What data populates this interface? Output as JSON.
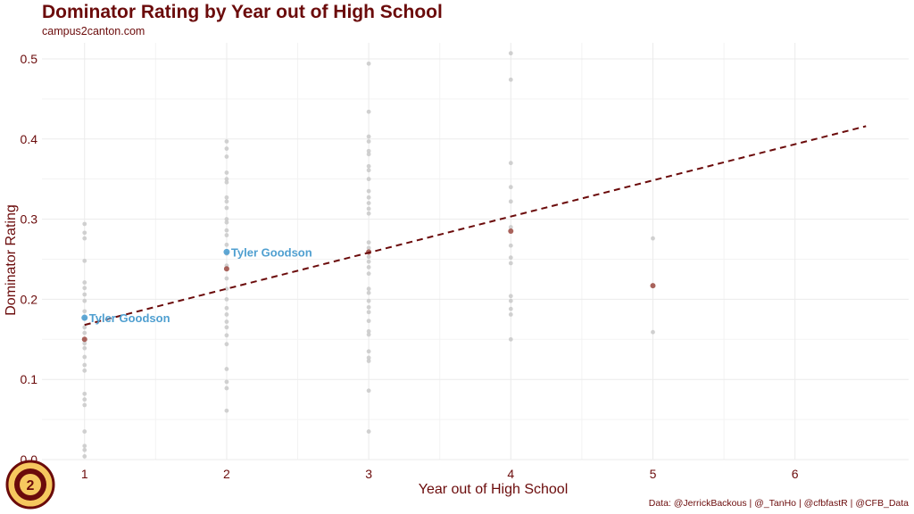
{
  "header": {
    "title": "Dominator Rating by Year out of High School",
    "subtitle": "campus2canton.com"
  },
  "caption": "Data: @JerrickBackous | @_TanHo | @cfbfastR | @CFB_Data",
  "logo": {
    "name": "campus2canton-logo"
  },
  "colors": {
    "text": "#6b0b0b",
    "trend": "#6b0b0b",
    "background_points": "#c9c9c9",
    "highlight_points": "#a0524a",
    "player": "#4f9fd0",
    "grid": "#ebebeb"
  },
  "chart_data": {
    "type": "scatter",
    "xlabel": "Year out of High School",
    "ylabel": "Dominator Rating",
    "xlim": [
      0.7,
      6.8
    ],
    "ylim": [
      0,
      0.52
    ],
    "x_ticks": [
      1,
      2,
      3,
      4,
      5,
      6
    ],
    "y_ticks": [
      0.0,
      0.1,
      0.2,
      0.3,
      0.4,
      0.5
    ],
    "y_tick_labels": [
      "0.0",
      "0.1",
      "0.2",
      "0.3",
      "0.4",
      "0.5"
    ],
    "grid": true,
    "series": [
      {
        "role": "background",
        "points": [
          [
            1,
            0.294
          ],
          [
            1,
            0.283
          ],
          [
            1,
            0.276
          ],
          [
            1,
            0.248
          ],
          [
            1,
            0.221
          ],
          [
            1,
            0.214
          ],
          [
            1,
            0.206
          ],
          [
            1,
            0.198
          ],
          [
            1,
            0.185
          ],
          [
            1,
            0.176
          ],
          [
            1,
            0.165
          ],
          [
            1,
            0.158
          ],
          [
            1,
            0.145
          ],
          [
            1,
            0.139
          ],
          [
            1,
            0.128
          ],
          [
            1,
            0.118
          ],
          [
            1,
            0.111
          ],
          [
            1,
            0.082
          ],
          [
            1,
            0.075
          ],
          [
            1,
            0.068
          ],
          [
            1,
            0.035
          ],
          [
            1,
            0.017
          ],
          [
            1,
            0.012
          ],
          [
            1,
            0.004
          ],
          [
            2,
            0.397
          ],
          [
            2,
            0.388
          ],
          [
            2,
            0.378
          ],
          [
            2,
            0.358
          ],
          [
            2,
            0.35
          ],
          [
            2,
            0.346
          ],
          [
            2,
            0.327
          ],
          [
            2,
            0.322
          ],
          [
            2,
            0.314
          ],
          [
            2,
            0.3
          ],
          [
            2,
            0.296
          ],
          [
            2,
            0.286
          ],
          [
            2,
            0.28
          ],
          [
            2,
            0.268
          ],
          [
            2,
            0.257
          ],
          [
            2,
            0.242
          ],
          [
            2,
            0.226
          ],
          [
            2,
            0.213
          ],
          [
            2,
            0.2
          ],
          [
            2,
            0.189
          ],
          [
            2,
            0.181
          ],
          [
            2,
            0.172
          ],
          [
            2,
            0.165
          ],
          [
            2,
            0.155
          ],
          [
            2,
            0.144
          ],
          [
            2,
            0.113
          ],
          [
            2,
            0.097
          ],
          [
            2,
            0.089
          ],
          [
            2,
            0.061
          ],
          [
            3,
            0.494
          ],
          [
            3,
            0.434
          ],
          [
            3,
            0.403
          ],
          [
            3,
            0.397
          ],
          [
            3,
            0.385
          ],
          [
            3,
            0.381
          ],
          [
            3,
            0.366
          ],
          [
            3,
            0.361
          ],
          [
            3,
            0.35
          ],
          [
            3,
            0.335
          ],
          [
            3,
            0.327
          ],
          [
            3,
            0.32
          ],
          [
            3,
            0.313
          ],
          [
            3,
            0.307
          ],
          [
            3,
            0.271
          ],
          [
            3,
            0.264
          ],
          [
            3,
            0.253
          ],
          [
            3,
            0.247
          ],
          [
            3,
            0.24
          ],
          [
            3,
            0.232
          ],
          [
            3,
            0.213
          ],
          [
            3,
            0.208
          ],
          [
            3,
            0.198
          ],
          [
            3,
            0.19
          ],
          [
            3,
            0.184
          ],
          [
            3,
            0.173
          ],
          [
            3,
            0.16
          ],
          [
            3,
            0.156
          ],
          [
            3,
            0.135
          ],
          [
            3,
            0.127
          ],
          [
            3,
            0.123
          ],
          [
            3,
            0.086
          ],
          [
            3,
            0.035
          ],
          [
            4,
            0.507
          ],
          [
            4,
            0.474
          ],
          [
            4,
            0.37
          ],
          [
            4,
            0.34
          ],
          [
            4,
            0.322
          ],
          [
            4,
            0.29
          ],
          [
            4,
            0.267
          ],
          [
            4,
            0.252
          ],
          [
            4,
            0.245
          ],
          [
            4,
            0.204
          ],
          [
            4,
            0.198
          ],
          [
            4,
            0.188
          ],
          [
            4,
            0.181
          ],
          [
            4,
            0.15
          ],
          [
            5,
            0.276
          ],
          [
            5,
            0.159
          ]
        ]
      },
      {
        "role": "highlight",
        "points": [
          [
            1,
            0.15
          ],
          [
            2,
            0.238
          ],
          [
            3,
            0.259
          ],
          [
            4,
            0.285
          ],
          [
            5,
            0.217
          ]
        ]
      },
      {
        "role": "player",
        "name": "Tyler Goodson",
        "points": [
          [
            1,
            0.177
          ],
          [
            2,
            0.259
          ]
        ]
      }
    ],
    "trend_line": {
      "style": "dashed",
      "x": [
        1,
        6.5
      ],
      "y": [
        0.168,
        0.416
      ]
    }
  }
}
